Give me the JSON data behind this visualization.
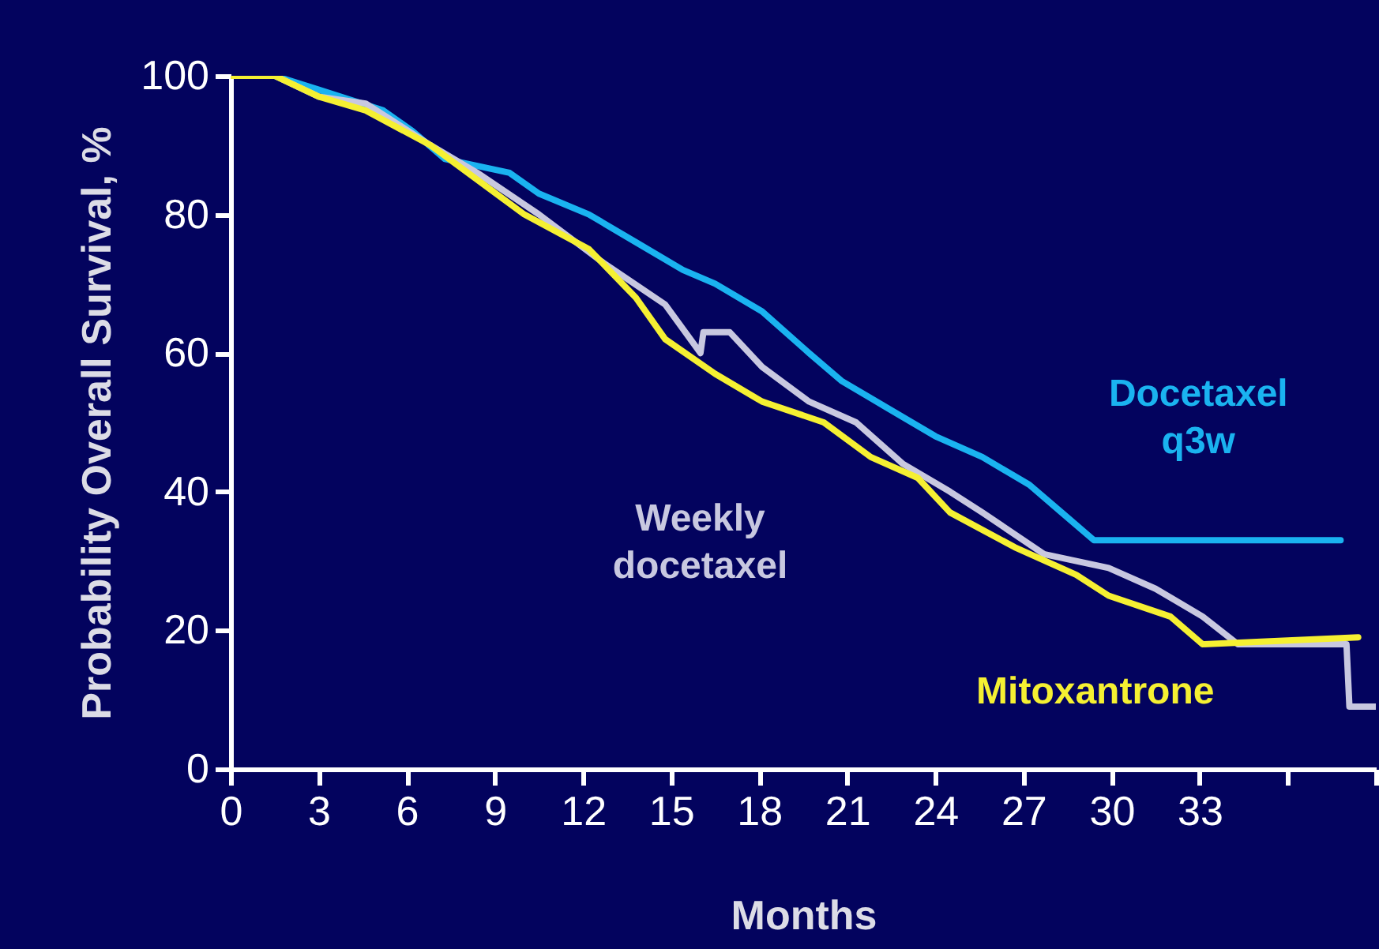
{
  "chart_data": {
    "type": "line",
    "xlabel": "Months",
    "ylabel": "Probability Overall Survival, %",
    "xlim": [
      0,
      39
    ],
    "xticks": [
      0,
      3,
      6,
      9,
      12,
      15,
      18,
      21,
      24,
      27,
      30,
      33,
      {
        "value": 36,
        "label": null
      },
      {
        "value": 39,
        "label": null
      }
    ],
    "ylim": [
      0,
      100
    ],
    "yticks": [
      0,
      20,
      40,
      60,
      80,
      100
    ],
    "grid": false,
    "legend": false,
    "marker": "none",
    "line_style": "solid",
    "series": [
      {
        "name": "Docetaxel q3w",
        "color": "#1ab3f0",
        "x": [
          0,
          1.5,
          3,
          5.2,
          6.2,
          7.3,
          9.5,
          10.5,
          12.2,
          13.8,
          15.4,
          16.5,
          18.1,
          19.7,
          20.8,
          22.4,
          24,
          25.6,
          27.2,
          28.3,
          29.4,
          37.8
        ],
        "values": [
          100,
          100,
          98,
          95,
          92,
          88,
          86,
          83,
          80,
          76,
          72,
          70,
          66,
          60,
          56,
          52,
          48,
          45,
          41,
          37,
          33,
          33
        ]
      },
      {
        "name": "Weekly docetaxel",
        "color": "#c8c8e0",
        "x": [
          0,
          1.5,
          3,
          4.6,
          6.8,
          8.4,
          10.5,
          12.7,
          14.8,
          16,
          16.1,
          17,
          18.1,
          19.7,
          21.3,
          22.9,
          24.5,
          25.6,
          27.7,
          29.9,
          31.5,
          33.1,
          34.3,
          38,
          38.1,
          39
        ],
        "values": [
          100,
          100,
          97,
          96,
          90,
          86,
          80,
          73,
          67,
          60,
          63,
          63,
          58,
          53,
          50,
          44,
          40,
          37,
          31,
          29,
          26,
          22,
          18,
          18,
          9,
          9
        ]
      },
      {
        "name": "Mitoxantrone",
        "color": "#f5f032",
        "x": [
          0,
          1.5,
          3,
          4.6,
          6.8,
          10,
          12.2,
          13.8,
          14.8,
          16.5,
          18.1,
          20.2,
          21.8,
          23.4,
          24.5,
          26.7,
          28.8,
          29.9,
          32,
          33.1,
          38.4
        ],
        "values": [
          100,
          100,
          97,
          95,
          90,
          80,
          75,
          68,
          62,
          57,
          53,
          50,
          45,
          42,
          37,
          32,
          28,
          25,
          22,
          18,
          19
        ]
      }
    ]
  }
}
